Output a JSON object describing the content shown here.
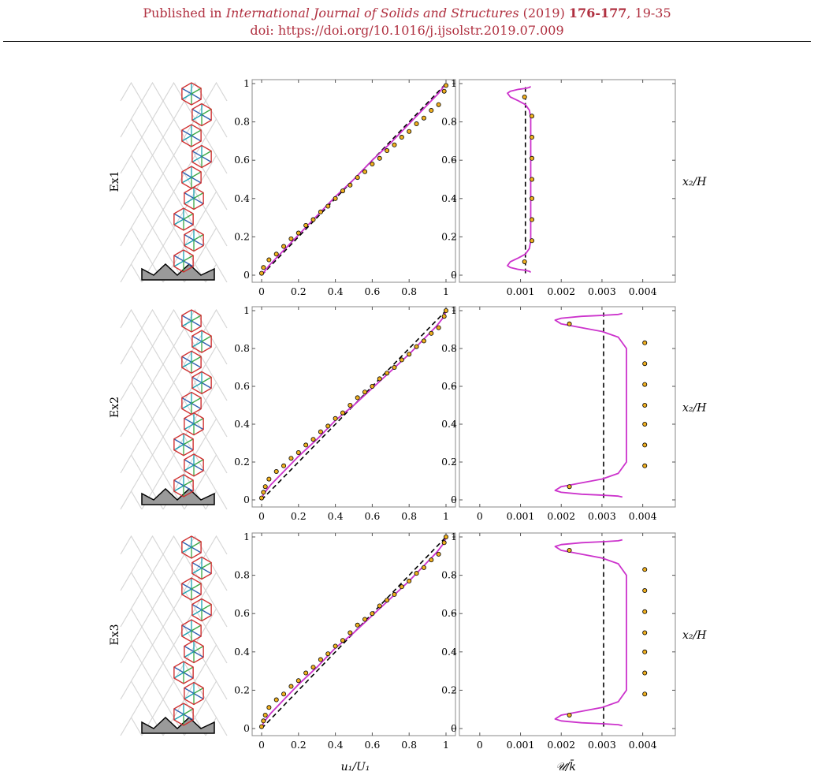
{
  "header": {
    "prefix": "Published in ",
    "journal": "International Journal of Solids and Structures",
    "year": " (2019) ",
    "volume": "176-177",
    "pages": ", 19-35",
    "doi": "doi: https://doi.org/10.1016/j.ijsolstr.2019.07.009"
  },
  "colors": {
    "header": "#b03040",
    "model": "#cc33cc",
    "dots": "#f0b020",
    "red": "#d03030",
    "blue": "#2e5fb0",
    "green": "#39a845",
    "cyan": "#1aa0b0"
  },
  "rows": [
    {
      "label": "Ex1",
      "ylabel": "x₂/H"
    },
    {
      "label": "Ex2",
      "ylabel": "x₂/H"
    },
    {
      "label": "Ex3",
      "ylabel": "x₂/H"
    }
  ],
  "axis_labels": {
    "left_x": "u₁/U₁",
    "right_x": "𝒰/k̄"
  },
  "chart_data": [
    {
      "type": "line",
      "panel": "displacement",
      "row": "Ex1",
      "xlim": [
        0,
        1
      ],
      "ylim": [
        0,
        1
      ],
      "xticks": [
        "0",
        "0.2",
        "0.4",
        "0.6",
        "0.8",
        "1"
      ],
      "yticks": [
        "0",
        "0.2",
        "0.4",
        "0.6",
        "0.8",
        "1"
      ],
      "dashed_line": {
        "x": [
          0,
          1
        ],
        "y": [
          0,
          1
        ]
      },
      "curve": {
        "x": [
          0,
          0.04,
          0.1,
          0.2,
          0.3,
          0.4,
          0.5,
          0.6,
          0.7,
          0.8,
          0.9,
          0.96,
          1
        ],
        "y": [
          0,
          0.05,
          0.11,
          0.21,
          0.31,
          0.41,
          0.5,
          0.6,
          0.69,
          0.79,
          0.89,
          0.95,
          1
        ]
      },
      "points": {
        "x": [
          0,
          0.01,
          0.04,
          0.08,
          0.12,
          0.16,
          0.2,
          0.24,
          0.28,
          0.32,
          0.36,
          0.4,
          0.44,
          0.48,
          0.52,
          0.56,
          0.6,
          0.64,
          0.68,
          0.72,
          0.76,
          0.8,
          0.84,
          0.88,
          0.92,
          0.96,
          0.99,
          1
        ],
        "y": [
          0.01,
          0.04,
          0.08,
          0.11,
          0.15,
          0.19,
          0.22,
          0.26,
          0.29,
          0.33,
          0.36,
          0.4,
          0.44,
          0.47,
          0.51,
          0.54,
          0.58,
          0.61,
          0.65,
          0.68,
          0.72,
          0.75,
          0.79,
          0.82,
          0.86,
          0.89,
          0.96,
          0.99
        ]
      }
    },
    {
      "type": "line",
      "panel": "energy",
      "row": "Ex1",
      "xlim": [
        -0.0005,
        0.0048
      ],
      "ylim": [
        0,
        1
      ],
      "xticks": [
        "0.001",
        "0.002",
        "0.003",
        "0.004"
      ],
      "yticks": [
        "0",
        "0.2",
        "0.4",
        "0.6",
        "0.8",
        "1"
      ],
      "dashed_line": {
        "x": [
          0.00112,
          0.00112
        ],
        "y": [
          0.01,
          0.99
        ]
      },
      "curve": {
        "x": [
          0.00125,
          0.00122,
          0.00112,
          0.00095,
          0.00075,
          0.00068,
          0.00075,
          0.00095,
          0.00112,
          0.00122,
          0.00125,
          0.00125,
          0.00125,
          0.00122,
          0.00112,
          0.00095,
          0.00075,
          0.00068,
          0.00075,
          0.00095,
          0.00112,
          0.00122,
          0.00125
        ],
        "y": [
          0.015,
          0.02,
          0.025,
          0.03,
          0.04,
          0.05,
          0.07,
          0.09,
          0.11,
          0.14,
          0.18,
          0.5,
          0.82,
          0.86,
          0.89,
          0.91,
          0.93,
          0.95,
          0.96,
          0.97,
          0.975,
          0.98,
          0.985
        ]
      },
      "points": {
        "x": [
          0.0011,
          0.00128,
          0.00128,
          0.00128,
          0.00128,
          0.00128,
          0.00128,
          0.00128,
          0.0011
        ],
        "y": [
          0.07,
          0.18,
          0.29,
          0.4,
          0.5,
          0.61,
          0.72,
          0.83,
          0.93
        ]
      }
    },
    {
      "type": "line",
      "panel": "displacement",
      "row": "Ex2",
      "xlim": [
        0,
        1
      ],
      "ylim": [
        0,
        1
      ],
      "xticks": [
        "0",
        "0.2",
        "0.4",
        "0.6",
        "0.8",
        "1"
      ],
      "yticks": [
        "0",
        "0.2",
        "0.4",
        "0.6",
        "0.8",
        "1"
      ],
      "dashed_line": {
        "x": [
          0,
          1
        ],
        "y": [
          0,
          1
        ]
      },
      "curve": {
        "x": [
          0,
          0.01,
          0.05,
          0.12,
          0.2,
          0.3,
          0.4,
          0.5,
          0.6,
          0.7,
          0.8,
          0.88,
          0.95,
          0.99,
          1
        ],
        "y": [
          0,
          0.03,
          0.08,
          0.15,
          0.23,
          0.32,
          0.42,
          0.5,
          0.59,
          0.68,
          0.77,
          0.85,
          0.92,
          0.97,
          1
        ]
      },
      "points": {
        "x": [
          0,
          0.01,
          0.02,
          0.04,
          0.08,
          0.12,
          0.16,
          0.2,
          0.24,
          0.28,
          0.32,
          0.36,
          0.4,
          0.44,
          0.48,
          0.52,
          0.56,
          0.6,
          0.64,
          0.68,
          0.72,
          0.76,
          0.8,
          0.84,
          0.88,
          0.92,
          0.96,
          0.99,
          1
        ],
        "y": [
          0.01,
          0.04,
          0.07,
          0.11,
          0.15,
          0.18,
          0.22,
          0.25,
          0.29,
          0.32,
          0.36,
          0.39,
          0.43,
          0.46,
          0.5,
          0.54,
          0.57,
          0.6,
          0.64,
          0.67,
          0.7,
          0.74,
          0.77,
          0.81,
          0.84,
          0.88,
          0.91,
          0.97,
          1
        ]
      }
    },
    {
      "type": "line",
      "panel": "energy",
      "row": "Ex2",
      "xlim": [
        -0.0005,
        0.0048
      ],
      "ylim": [
        0,
        1
      ],
      "xticks": [
        "0",
        "0.001",
        "0.002",
        "0.003",
        "0.004"
      ],
      "yticks": [
        "0",
        "0.2",
        "0.4",
        "0.6",
        "0.8",
        "1"
      ],
      "dashed_line": {
        "x": [
          0.00304,
          0.00304
        ],
        "y": [
          0.01,
          0.99
        ]
      },
      "curve": {
        "x": [
          0.0035,
          0.0034,
          0.003,
          0.0025,
          0.002,
          0.00185,
          0.002,
          0.0025,
          0.003,
          0.0034,
          0.0036,
          0.0036,
          0.0036,
          0.0034,
          0.003,
          0.0025,
          0.002,
          0.00185,
          0.002,
          0.0025,
          0.003,
          0.0034,
          0.0035
        ],
        "y": [
          0.015,
          0.02,
          0.025,
          0.03,
          0.04,
          0.05,
          0.07,
          0.09,
          0.11,
          0.14,
          0.2,
          0.5,
          0.8,
          0.86,
          0.89,
          0.91,
          0.93,
          0.95,
          0.96,
          0.97,
          0.975,
          0.98,
          0.985
        ]
      },
      "points": {
        "x": [
          0.0022,
          0.00405,
          0.00405,
          0.00405,
          0.00405,
          0.00405,
          0.00405,
          0.00405,
          0.0022
        ],
        "y": [
          0.07,
          0.18,
          0.29,
          0.4,
          0.5,
          0.61,
          0.72,
          0.83,
          0.93
        ]
      }
    },
    {
      "type": "line",
      "panel": "displacement",
      "row": "Ex3",
      "xlim": [
        0,
        1
      ],
      "ylim": [
        0,
        1
      ],
      "xticks": [
        "0",
        "0.2",
        "0.4",
        "0.6",
        "0.8",
        "1"
      ],
      "yticks": [
        "0",
        "0.2",
        "0.4",
        "0.6",
        "0.8",
        "1"
      ],
      "dashed_line": {
        "x": [
          0,
          1
        ],
        "y": [
          0,
          1
        ]
      },
      "curve": {
        "x": [
          0,
          0.01,
          0.05,
          0.12,
          0.2,
          0.3,
          0.4,
          0.5,
          0.6,
          0.7,
          0.8,
          0.88,
          0.95,
          0.99,
          1
        ],
        "y": [
          0,
          0.03,
          0.08,
          0.15,
          0.23,
          0.32,
          0.42,
          0.5,
          0.59,
          0.68,
          0.77,
          0.85,
          0.92,
          0.97,
          1
        ]
      },
      "points": {
        "x": [
          0,
          0.01,
          0.02,
          0.04,
          0.08,
          0.12,
          0.16,
          0.2,
          0.24,
          0.28,
          0.32,
          0.36,
          0.4,
          0.44,
          0.48,
          0.52,
          0.56,
          0.6,
          0.64,
          0.68,
          0.72,
          0.76,
          0.8,
          0.84,
          0.88,
          0.92,
          0.96,
          0.99,
          1
        ],
        "y": [
          0.01,
          0.04,
          0.07,
          0.11,
          0.15,
          0.18,
          0.22,
          0.25,
          0.29,
          0.32,
          0.36,
          0.39,
          0.43,
          0.46,
          0.5,
          0.54,
          0.57,
          0.6,
          0.64,
          0.67,
          0.7,
          0.74,
          0.77,
          0.81,
          0.84,
          0.88,
          0.91,
          0.97,
          1
        ]
      }
    },
    {
      "type": "line",
      "panel": "energy",
      "row": "Ex3",
      "xlim": [
        -0.0005,
        0.0048
      ],
      "ylim": [
        0,
        1
      ],
      "xticks": [
        "0",
        "0.001",
        "0.002",
        "0.003",
        "0.004"
      ],
      "yticks": [
        "0",
        "0.2",
        "0.4",
        "0.6",
        "0.8",
        "1"
      ],
      "dashed_line": {
        "x": [
          0.00304,
          0.00304
        ],
        "y": [
          0.01,
          0.99
        ]
      },
      "curve": {
        "x": [
          0.0035,
          0.0034,
          0.003,
          0.0025,
          0.002,
          0.00185,
          0.002,
          0.0025,
          0.003,
          0.0034,
          0.0036,
          0.0036,
          0.0036,
          0.0034,
          0.003,
          0.0025,
          0.002,
          0.00185,
          0.002,
          0.0025,
          0.003,
          0.0034,
          0.0035
        ],
        "y": [
          0.015,
          0.02,
          0.025,
          0.03,
          0.04,
          0.05,
          0.07,
          0.09,
          0.11,
          0.14,
          0.2,
          0.5,
          0.8,
          0.86,
          0.89,
          0.91,
          0.93,
          0.95,
          0.96,
          0.97,
          0.975,
          0.98,
          0.985
        ]
      },
      "points": {
        "x": [
          0.0022,
          0.00405,
          0.00405,
          0.00405,
          0.00405,
          0.00405,
          0.00405,
          0.00405,
          0.0022
        ],
        "y": [
          0.07,
          0.18,
          0.29,
          0.4,
          0.5,
          0.61,
          0.72,
          0.83,
          0.93
        ]
      }
    }
  ]
}
